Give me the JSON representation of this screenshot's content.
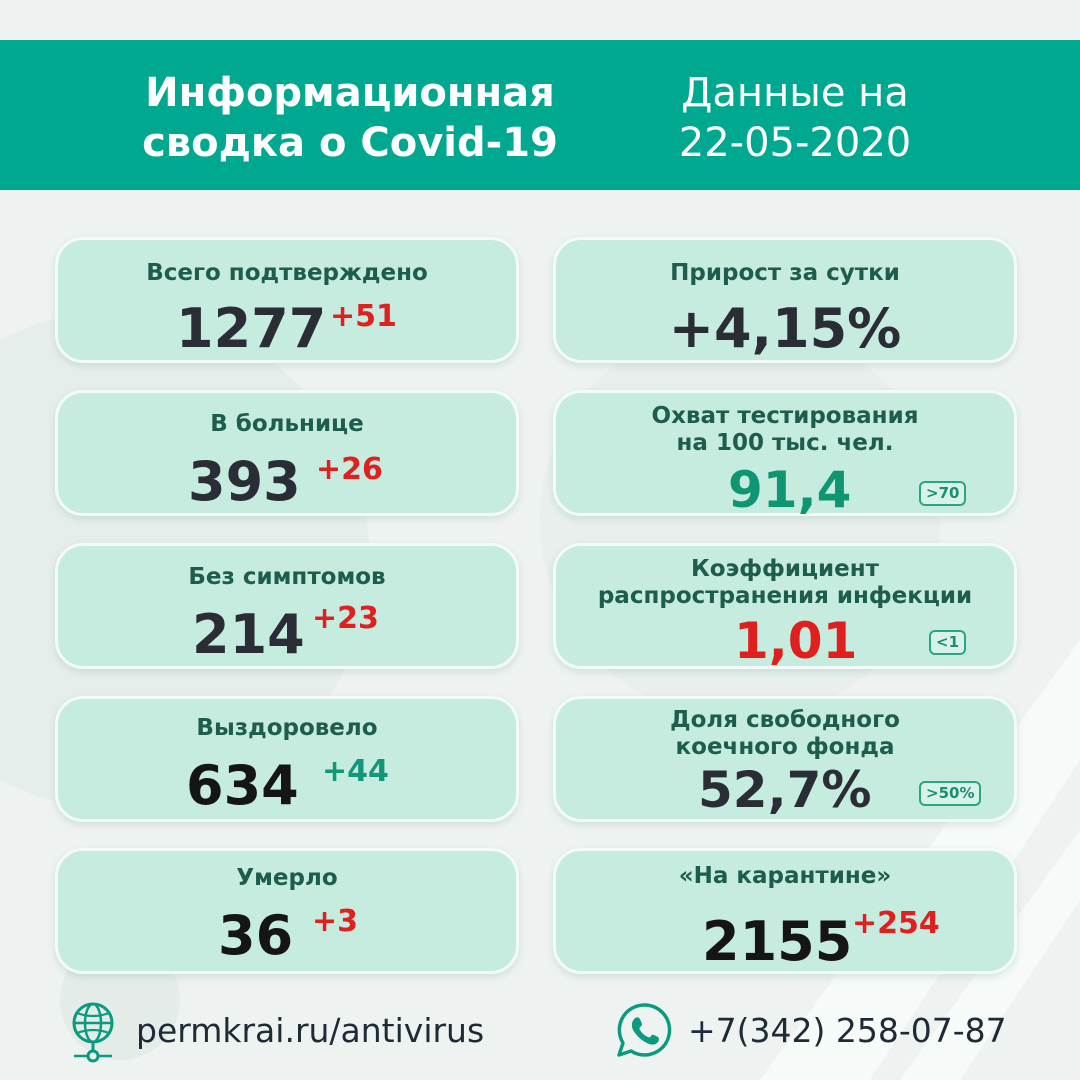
{
  "header": {
    "title_line1": "Информационная",
    "title_line2": "сводка о Covid-19",
    "date_line1": "Данные на",
    "date_line2": "22-05-2020"
  },
  "left_cards": [
    {
      "title": "Всего подтверждено",
      "value": "1277",
      "delta": "+51"
    },
    {
      "title": "В больнице",
      "value": "393",
      "delta": "+26"
    },
    {
      "title": "Без симптомов",
      "value": "214",
      "delta": "+23"
    },
    {
      "title": "Выздоровело",
      "value": "634",
      "delta": "+44"
    },
    {
      "title": "Умерло",
      "value": "36",
      "delta": "+3"
    }
  ],
  "right_cards": {
    "growth": {
      "title": "Прирост за сутки",
      "value": "+4,15%"
    },
    "testing": {
      "title_line1": "Охват тестирования",
      "title_line2": "на 100 тыс. чел.",
      "value": "91,4",
      "badge": ">70"
    },
    "rate": {
      "title_line1": "Коэффициент",
      "title_line2": "распространения инфекции",
      "value": "1,01",
      "badge": "<1"
    },
    "beds": {
      "title_line1": "Доля свободного",
      "title_line2": "коечного фонда",
      "value": "52,7%",
      "badge": ">50%"
    },
    "quarantine": {
      "title": "«На карантине»",
      "value": "2155",
      "delta": "+254"
    }
  },
  "footer": {
    "website": "permkrai.ru/antivirus",
    "phone": "+7(342) 258-07-87"
  },
  "colors": {
    "header_bg": "#00a890",
    "card_bg": "#c6ebdf",
    "increase_red": "#e01f1f",
    "positive_green": "#14967a"
  },
  "icons": [
    "globe-icon",
    "whatsapp-phone-icon"
  ]
}
